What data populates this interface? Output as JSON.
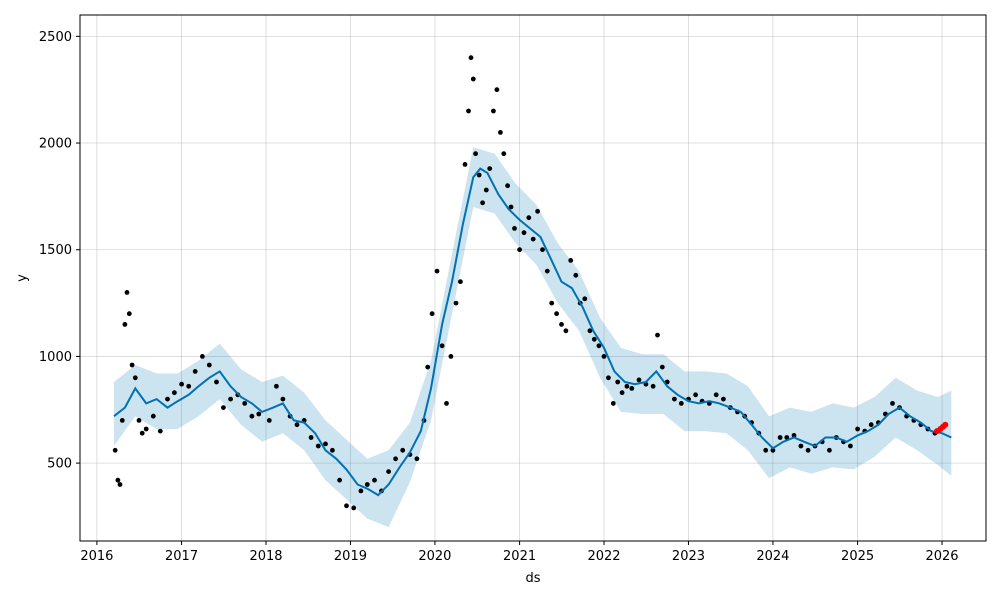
{
  "chart_data": {
    "type": "line",
    "title": "",
    "xlabel": "ds",
    "ylabel": "y",
    "x_ticks": [
      "2016",
      "2017",
      "2018",
      "2019",
      "2020",
      "2021",
      "2022",
      "2023",
      "2024",
      "2025",
      "2026"
    ],
    "y_ticks": [
      500,
      1000,
      1500,
      2000,
      2500
    ],
    "xlim": [
      "2015-10-20",
      "2026-07-10"
    ],
    "ylim": [
      135,
      2600
    ],
    "grid": true,
    "legend": "none",
    "colors": {
      "observed": "#000000",
      "forecast": "#0072B2",
      "interval": "#0072B2",
      "recent": "#FF0000"
    },
    "series": [
      {
        "type": "line",
        "points": [
          [
            "2016-03-15",
            720
          ],
          [
            "2016-05-01",
            760
          ],
          [
            "2016-06-15",
            850
          ],
          [
            "2016-08-01",
            780
          ],
          [
            "2016-09-15",
            800
          ],
          [
            "2016-11-01",
            760
          ],
          [
            "2016-12-15",
            790
          ],
          [
            "2017-02-01",
            820
          ],
          [
            "2017-03-15",
            860
          ],
          [
            "2017-05-01",
            900
          ],
          [
            "2017-06-15",
            930
          ],
          [
            "2017-08-01",
            860
          ],
          [
            "2017-09-15",
            810
          ],
          [
            "2017-11-01",
            780
          ],
          [
            "2017-12-15",
            740
          ],
          [
            "2018-02-01",
            760
          ],
          [
            "2018-03-15",
            780
          ],
          [
            "2018-05-01",
            700
          ],
          [
            "2018-06-15",
            690
          ],
          [
            "2018-08-01",
            640
          ],
          [
            "2018-09-15",
            560
          ],
          [
            "2018-11-01",
            520
          ],
          [
            "2018-12-15",
            470
          ],
          [
            "2019-02-01",
            400
          ],
          [
            "2019-03-15",
            380
          ],
          [
            "2019-05-01",
            350
          ],
          [
            "2019-06-15",
            400
          ],
          [
            "2019-08-01",
            480
          ],
          [
            "2019-09-15",
            550
          ],
          [
            "2019-11-01",
            650
          ],
          [
            "2019-12-15",
            850
          ],
          [
            "2020-02-01",
            1150
          ],
          [
            "2020-03-15",
            1350
          ],
          [
            "2020-05-01",
            1620
          ],
          [
            "2020-06-15",
            1840
          ],
          [
            "2020-07-15",
            1880
          ],
          [
            "2020-08-15",
            1860
          ],
          [
            "2020-10-01",
            1760
          ],
          [
            "2020-11-15",
            1690
          ],
          [
            "2021-01-01",
            1640
          ],
          [
            "2021-02-15",
            1600
          ],
          [
            "2021-04-01",
            1560
          ],
          [
            "2021-05-15",
            1460
          ],
          [
            "2021-07-01",
            1350
          ],
          [
            "2021-08-15",
            1320
          ],
          [
            "2021-10-01",
            1230
          ],
          [
            "2021-11-15",
            1120
          ],
          [
            "2022-01-01",
            1040
          ],
          [
            "2022-02-15",
            930
          ],
          [
            "2022-04-01",
            880
          ],
          [
            "2022-05-15",
            870
          ],
          [
            "2022-07-01",
            880
          ],
          [
            "2022-08-15",
            930
          ],
          [
            "2022-10-01",
            860
          ],
          [
            "2022-11-15",
            820
          ],
          [
            "2023-01-01",
            790
          ],
          [
            "2023-02-15",
            780
          ],
          [
            "2023-04-01",
            790
          ],
          [
            "2023-05-15",
            780
          ],
          [
            "2023-07-01",
            760
          ],
          [
            "2023-08-15",
            740
          ],
          [
            "2023-10-01",
            680
          ],
          [
            "2023-11-15",
            620
          ],
          [
            "2024-01-01",
            570
          ],
          [
            "2024-02-15",
            600
          ],
          [
            "2024-04-01",
            620
          ],
          [
            "2024-05-15",
            600
          ],
          [
            "2024-07-01",
            580
          ],
          [
            "2024-08-15",
            620
          ],
          [
            "2024-10-01",
            620
          ],
          [
            "2024-11-15",
            600
          ],
          [
            "2025-01-01",
            630
          ],
          [
            "2025-02-15",
            650
          ],
          [
            "2025-04-01",
            680
          ],
          [
            "2025-05-15",
            730
          ],
          [
            "2025-07-01",
            760
          ],
          [
            "2025-08-15",
            720
          ],
          [
            "2025-10-01",
            690
          ],
          [
            "2025-11-15",
            650
          ],
          [
            "2026-01-01",
            640
          ],
          [
            "2026-02-10",
            620
          ]
        ]
      },
      {
        "type": "scatter",
        "points": [
          [
            "2016-03-20",
            560
          ],
          [
            "2016-04-01",
            420
          ],
          [
            "2016-04-10",
            400
          ],
          [
            "2016-04-20",
            700
          ],
          [
            "2016-05-01",
            1150
          ],
          [
            "2016-05-10",
            1300
          ],
          [
            "2016-05-20",
            1200
          ],
          [
            "2016-06-01",
            960
          ],
          [
            "2016-06-15",
            900
          ],
          [
            "2016-07-01",
            700
          ],
          [
            "2016-07-15",
            640
          ],
          [
            "2016-08-01",
            660
          ],
          [
            "2016-09-01",
            720
          ],
          [
            "2016-10-01",
            650
          ],
          [
            "2016-11-01",
            800
          ],
          [
            "2016-12-01",
            830
          ],
          [
            "2017-01-01",
            870
          ],
          [
            "2017-02-01",
            860
          ],
          [
            "2017-03-01",
            930
          ],
          [
            "2017-04-01",
            1000
          ],
          [
            "2017-05-01",
            960
          ],
          [
            "2017-06-01",
            880
          ],
          [
            "2017-07-01",
            760
          ],
          [
            "2017-08-01",
            800
          ],
          [
            "2017-09-01",
            820
          ],
          [
            "2017-10-01",
            780
          ],
          [
            "2017-11-01",
            720
          ],
          [
            "2017-12-01",
            730
          ],
          [
            "2018-01-15",
            700
          ],
          [
            "2018-02-15",
            860
          ],
          [
            "2018-03-15",
            800
          ],
          [
            "2018-04-15",
            720
          ],
          [
            "2018-05-15",
            680
          ],
          [
            "2018-06-15",
            700
          ],
          [
            "2018-07-15",
            620
          ],
          [
            "2018-08-15",
            580
          ],
          [
            "2018-09-15",
            590
          ],
          [
            "2018-10-15",
            560
          ],
          [
            "2018-11-15",
            420
          ],
          [
            "2018-12-15",
            300
          ],
          [
            "2019-01-15",
            290
          ],
          [
            "2019-02-15",
            370
          ],
          [
            "2019-03-15",
            400
          ],
          [
            "2019-04-15",
            420
          ],
          [
            "2019-05-15",
            370
          ],
          [
            "2019-06-15",
            460
          ],
          [
            "2019-07-15",
            520
          ],
          [
            "2019-08-15",
            560
          ],
          [
            "2019-09-15",
            540
          ],
          [
            "2019-10-15",
            520
          ],
          [
            "2019-11-15",
            700
          ],
          [
            "2019-12-01",
            950
          ],
          [
            "2019-12-20",
            1200
          ],
          [
            "2020-01-10",
            1400
          ],
          [
            "2020-02-01",
            1050
          ],
          [
            "2020-02-20",
            780
          ],
          [
            "2020-03-10",
            1000
          ],
          [
            "2020-04-01",
            1250
          ],
          [
            "2020-04-20",
            1350
          ],
          [
            "2020-05-10",
            1900
          ],
          [
            "2020-05-25",
            2150
          ],
          [
            "2020-06-05",
            2400
          ],
          [
            "2020-06-15",
            2300
          ],
          [
            "2020-06-25",
            1950
          ],
          [
            "2020-07-10",
            1850
          ],
          [
            "2020-07-25",
            1720
          ],
          [
            "2020-08-10",
            1780
          ],
          [
            "2020-08-25",
            1880
          ],
          [
            "2020-09-10",
            2150
          ],
          [
            "2020-09-25",
            2250
          ],
          [
            "2020-10-10",
            2050
          ],
          [
            "2020-10-25",
            1950
          ],
          [
            "2020-11-10",
            1800
          ],
          [
            "2020-11-25",
            1700
          ],
          [
            "2020-12-10",
            1600
          ],
          [
            "2021-01-01",
            1500
          ],
          [
            "2021-01-20",
            1580
          ],
          [
            "2021-02-10",
            1650
          ],
          [
            "2021-03-01",
            1550
          ],
          [
            "2021-03-20",
            1680
          ],
          [
            "2021-04-10",
            1500
          ],
          [
            "2021-05-01",
            1400
          ],
          [
            "2021-05-20",
            1250
          ],
          [
            "2021-06-10",
            1200
          ],
          [
            "2021-07-01",
            1150
          ],
          [
            "2021-07-20",
            1120
          ],
          [
            "2021-08-10",
            1450
          ],
          [
            "2021-09-01",
            1380
          ],
          [
            "2021-09-20",
            1250
          ],
          [
            "2021-10-10",
            1270
          ],
          [
            "2021-11-01",
            1120
          ],
          [
            "2021-11-20",
            1080
          ],
          [
            "2021-12-10",
            1050
          ],
          [
            "2022-01-01",
            1000
          ],
          [
            "2022-01-20",
            900
          ],
          [
            "2022-02-10",
            780
          ],
          [
            "2022-03-01",
            880
          ],
          [
            "2022-03-20",
            830
          ],
          [
            "2022-04-10",
            860
          ],
          [
            "2022-05-01",
            850
          ],
          [
            "2022-06-01",
            890
          ],
          [
            "2022-07-01",
            870
          ],
          [
            "2022-08-01",
            860
          ],
          [
            "2022-08-20",
            1100
          ],
          [
            "2022-09-10",
            950
          ],
          [
            "2022-10-01",
            880
          ],
          [
            "2022-11-01",
            800
          ],
          [
            "2022-12-01",
            780
          ],
          [
            "2023-01-01",
            800
          ],
          [
            "2023-02-01",
            820
          ],
          [
            "2023-03-01",
            790
          ],
          [
            "2023-04-01",
            780
          ],
          [
            "2023-05-01",
            820
          ],
          [
            "2023-06-01",
            800
          ],
          [
            "2023-07-01",
            760
          ],
          [
            "2023-08-01",
            740
          ],
          [
            "2023-09-01",
            720
          ],
          [
            "2023-10-01",
            690
          ],
          [
            "2023-11-01",
            640
          ],
          [
            "2023-12-01",
            560
          ],
          [
            "2024-01-01",
            560
          ],
          [
            "2024-02-01",
            620
          ],
          [
            "2024-03-01",
            620
          ],
          [
            "2024-04-01",
            630
          ],
          [
            "2024-05-01",
            580
          ],
          [
            "2024-06-01",
            560
          ],
          [
            "2024-07-01",
            580
          ],
          [
            "2024-08-01",
            600
          ],
          [
            "2024-09-01",
            560
          ],
          [
            "2024-10-01",
            620
          ],
          [
            "2024-11-01",
            600
          ],
          [
            "2024-12-01",
            580
          ],
          [
            "2025-01-01",
            660
          ],
          [
            "2025-02-01",
            650
          ],
          [
            "2025-03-01",
            680
          ],
          [
            "2025-04-01",
            690
          ],
          [
            "2025-05-01",
            730
          ],
          [
            "2025-06-01",
            780
          ],
          [
            "2025-07-01",
            760
          ],
          [
            "2025-08-01",
            720
          ],
          [
            "2025-09-01",
            700
          ],
          [
            "2025-10-01",
            680
          ],
          [
            "2025-11-01",
            660
          ],
          [
            "2025-12-01",
            640
          ]
        ]
      },
      {
        "type": "scatter",
        "points": [
          [
            "2025-12-10",
            650
          ],
          [
            "2025-12-25",
            660
          ],
          [
            "2026-01-05",
            670
          ],
          [
            "2026-01-15",
            680
          ]
        ]
      }
    ],
    "interval_band": [
      [
        "2016-03-15",
        580,
        880
      ],
      [
        "2016-06-15",
        720,
        960
      ],
      [
        "2016-09-15",
        660,
        920
      ],
      [
        "2016-12-15",
        660,
        920
      ],
      [
        "2017-03-15",
        720,
        980
      ],
      [
        "2017-06-15",
        800,
        1060
      ],
      [
        "2017-09-15",
        680,
        940
      ],
      [
        "2017-12-15",
        600,
        880
      ],
      [
        "2018-03-15",
        640,
        910
      ],
      [
        "2018-06-15",
        560,
        830
      ],
      [
        "2018-09-15",
        420,
        700
      ],
      [
        "2018-12-15",
        330,
        610
      ],
      [
        "2019-03-15",
        240,
        520
      ],
      [
        "2019-06-15",
        200,
        560
      ],
      [
        "2019-09-15",
        410,
        690
      ],
      [
        "2019-12-15",
        700,
        980
      ],
      [
        "2020-03-15",
        1200,
        1480
      ],
      [
        "2020-06-15",
        1700,
        1980
      ],
      [
        "2020-09-15",
        1670,
        1950
      ],
      [
        "2020-12-15",
        1530,
        1810
      ],
      [
        "2021-03-15",
        1430,
        1710
      ],
      [
        "2021-06-15",
        1250,
        1530
      ],
      [
        "2021-09-15",
        1120,
        1400
      ],
      [
        "2021-12-15",
        900,
        1180
      ],
      [
        "2022-03-15",
        740,
        1040
      ],
      [
        "2022-06-15",
        730,
        1010
      ],
      [
        "2022-09-15",
        730,
        1010
      ],
      [
        "2022-12-15",
        650,
        930
      ],
      [
        "2023-03-15",
        650,
        930
      ],
      [
        "2023-06-15",
        640,
        920
      ],
      [
        "2023-09-15",
        560,
        860
      ],
      [
        "2023-12-15",
        430,
        720
      ],
      [
        "2024-03-15",
        480,
        760
      ],
      [
        "2024-06-15",
        450,
        740
      ],
      [
        "2024-09-15",
        480,
        780
      ],
      [
        "2024-12-15",
        470,
        760
      ],
      [
        "2025-03-15",
        530,
        810
      ],
      [
        "2025-06-15",
        620,
        900
      ],
      [
        "2025-09-15",
        560,
        840
      ],
      [
        "2025-12-15",
        490,
        810
      ],
      [
        "2026-02-10",
        440,
        840
      ]
    ]
  }
}
